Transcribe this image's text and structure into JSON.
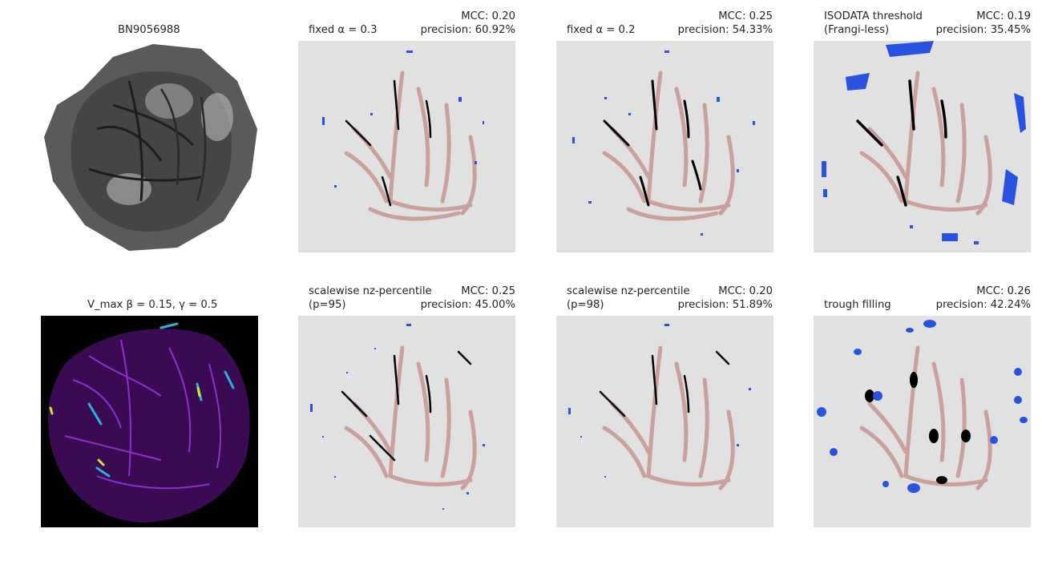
{
  "figure": {
    "panels": [
      {
        "id": "p1",
        "sample_name": "BN9056988"
      },
      {
        "id": "p2",
        "method_lines": [
          "fixed α = 0.3"
        ],
        "mcc": "MCC: 0.20",
        "precision": "precision: 60.92%"
      },
      {
        "id": "p3",
        "method_lines": [
          "fixed α = 0.2"
        ],
        "mcc": "MCC: 0.25",
        "precision": "precision: 54.33%"
      },
      {
        "id": "p4",
        "method_lines": [
          "ISODATA threshold",
          "(Frangi-less)"
        ],
        "mcc": "MCC: 0.19",
        "precision": "precision: 35.45%"
      },
      {
        "id": "p5",
        "vmax_title": "V_max β = 0.15, γ = 0.5"
      },
      {
        "id": "p6",
        "method_lines": [
          "scalewise nz-percentile",
          "(p=95)"
        ],
        "mcc": "MCC: 0.25",
        "precision": "precision: 45.00%"
      },
      {
        "id": "p7",
        "method_lines": [
          "scalewise nz-percentile",
          "(p=98)"
        ],
        "mcc": "MCC: 0.20",
        "precision": "precision: 51.89%"
      },
      {
        "id": "p8",
        "method_lines": [
          "trough filling"
        ],
        "mcc": "MCC: 0.26",
        "precision": "precision: 42.24%"
      }
    ],
    "colors": {
      "background": "#e1e1e1",
      "ground_truth_vessel": "#c9a09b",
      "true_positive": "#000000",
      "false_positive": "#2a52e0"
    }
  }
}
